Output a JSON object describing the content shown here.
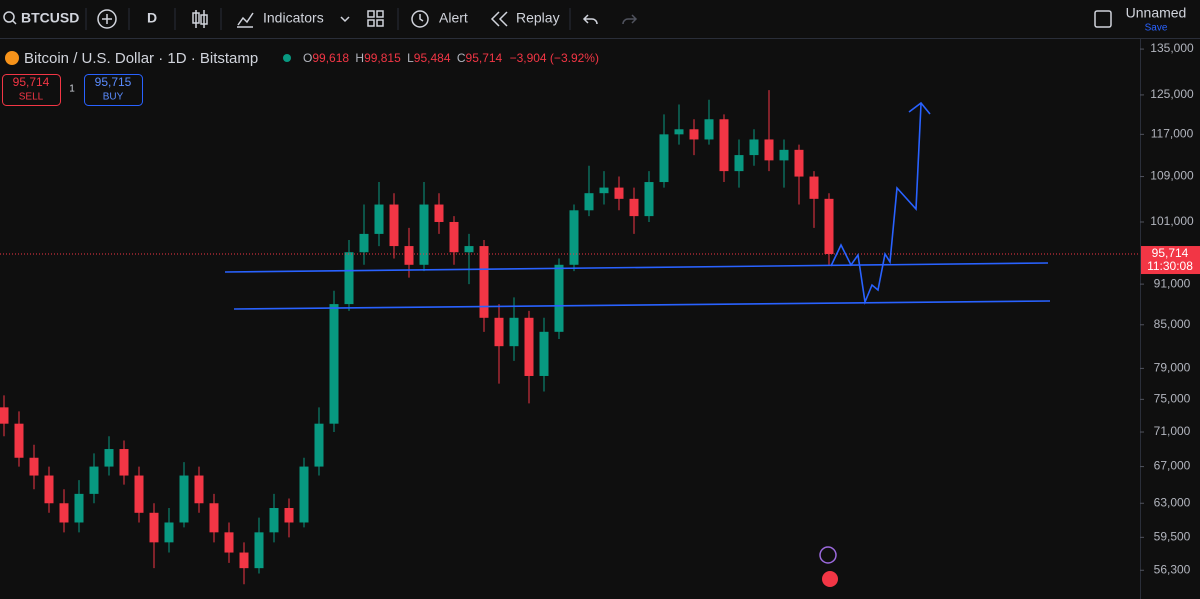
{
  "toolbar": {
    "symbol": "BTCUSD",
    "interval": "D",
    "indicators": "Indicators",
    "alert": "Alert",
    "replay": "Replay",
    "layout_name": "Unnamed",
    "save": "Save"
  },
  "legend": {
    "title": "Bitcoin / U.S. Dollar · 1D · Bitstamp",
    "open_label": "O",
    "open": "99,618",
    "high_label": "H",
    "high": "99,815",
    "low_label": "L",
    "low": "95,484",
    "close_label": "C",
    "close": "95,714",
    "change": "−3,904 (−3.92%)"
  },
  "trade": {
    "sell_price": "95,714",
    "sell": "SELL",
    "quantity": "1",
    "buy_price": "95,715",
    "buy": "BUY"
  },
  "chart_data": {
    "type": "candlestick",
    "log_scale": true,
    "grid": false,
    "up_color": "#089981",
    "down_color": "#f23645",
    "ylim": [
      53650,
      137300
    ],
    "yticks": [
      {
        "value": 135000,
        "label": "135,000"
      },
      {
        "value": 125000,
        "label": "125,000"
      },
      {
        "value": 117000,
        "label": "117,000"
      },
      {
        "value": 109000,
        "label": "109,000"
      },
      {
        "value": 101000,
        "label": "101,000"
      },
      {
        "value": 91000,
        "label": "91,000"
      },
      {
        "value": 85000,
        "label": "85,000"
      },
      {
        "value": 79000,
        "label": "79,000"
      },
      {
        "value": 75000,
        "label": "75,000"
      },
      {
        "value": 71000,
        "label": "71,000"
      },
      {
        "value": 67000,
        "label": "67,000"
      },
      {
        "value": 63000,
        "label": "63,000"
      },
      {
        "value": 59500,
        "label": "59,500"
      },
      {
        "value": 56300,
        "label": "56,300"
      }
    ],
    "last_price": {
      "value": 95714,
      "label": "95,714"
    },
    "countdown": "11:30:08",
    "open": [
      74000,
      72000,
      68000,
      66000,
      63000,
      61000,
      64000,
      67000,
      69000,
      66000,
      62000,
      59000,
      61000,
      66000,
      63000,
      60000,
      58000,
      56500,
      60000,
      62500,
      61000,
      67000,
      72000,
      88000,
      96000,
      99000,
      104000,
      97000,
      94000,
      104000,
      101000,
      96000,
      97000,
      86000,
      82000,
      86000,
      78000,
      84000,
      94000,
      103000,
      106000,
      107000,
      105000,
      102000,
      108000,
      117000,
      118000,
      116000,
      120000,
      110000,
      113000,
      116000,
      112000,
      114000,
      109000,
      105000
    ],
    "high": [
      75500,
      73500,
      69500,
      67000,
      64500,
      65500,
      68500,
      70500,
      70000,
      67000,
      63000,
      62500,
      67500,
      67000,
      64000,
      61000,
      59000,
      61500,
      64000,
      63500,
      68000,
      74000,
      90000,
      98000,
      104000,
      108000,
      106000,
      100000,
      108000,
      106000,
      102000,
      99000,
      98000,
      88000,
      89000,
      87000,
      86000,
      95000,
      104000,
      111000,
      110000,
      109000,
      107000,
      110000,
      121000,
      123000,
      120000,
      124000,
      121000,
      116000,
      118000,
      126000,
      116000,
      115000,
      110000,
      106000
    ],
    "low": [
      70500,
      67000,
      64500,
      62000,
      60000,
      60000,
      63000,
      66000,
      65000,
      61000,
      56500,
      58000,
      60500,
      62000,
      59000,
      57000,
      55000,
      56000,
      59000,
      59500,
      60500,
      66000,
      71000,
      87000,
      94000,
      97000,
      95000,
      92000,
      93000,
      99000,
      94000,
      91000,
      84000,
      77000,
      80000,
      74500,
      76000,
      83000,
      93000,
      102000,
      104000,
      103000,
      99000,
      101000,
      107000,
      115000,
      113000,
      115000,
      108000,
      107000,
      111000,
      110000,
      107000,
      104000,
      100000,
      94000
    ],
    "close": [
      72000,
      68000,
      66000,
      63000,
      61000,
      64000,
      67000,
      69000,
      66000,
      62000,
      59000,
      61000,
      66000,
      63000,
      60000,
      58000,
      56500,
      60000,
      62500,
      61000,
      67000,
      72000,
      88000,
      96000,
      99000,
      104000,
      97000,
      94000,
      104000,
      101000,
      96000,
      97000,
      86000,
      82000,
      86000,
      78000,
      84000,
      94000,
      103000,
      106000,
      107000,
      105000,
      102000,
      108000,
      117000,
      118000,
      116000,
      120000,
      110000,
      113000,
      116000,
      112000,
      114000,
      109000,
      105000,
      95714
    ]
  }
}
